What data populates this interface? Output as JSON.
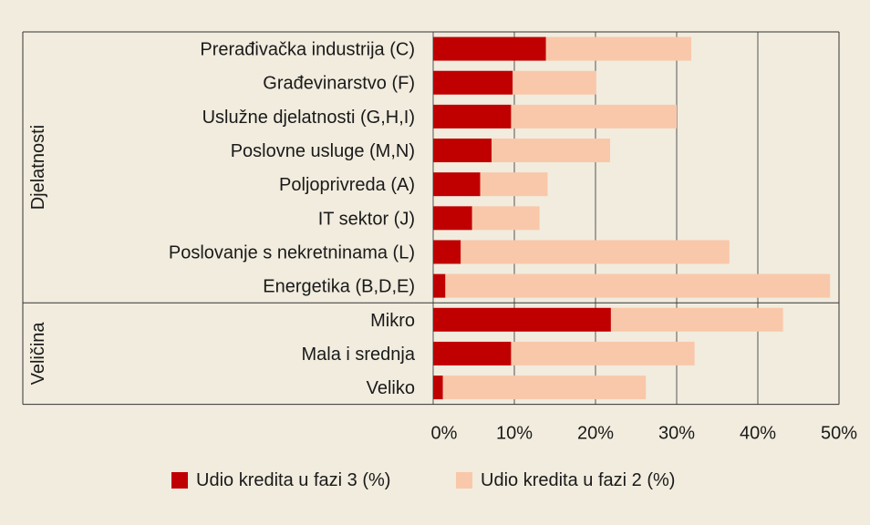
{
  "chart_data": {
    "type": "bar",
    "orientation": "horizontal",
    "stacked": true,
    "groups": [
      {
        "label": "Djelatnosti",
        "categories": [
          "Prerađivačka industrija (C)",
          "Građevinarstvo (F)",
          "Uslužne djelatnosti (G,H,I)",
          "Poslovne usluge (M,N)",
          "Poljoprivreda (A)",
          "IT sektor (J)",
          "Poslovanje s nekretninama (L)",
          "Energetika (B,D,E)"
        ]
      },
      {
        "label": "Veličina",
        "categories": [
          "Mikro",
          "Mala i srednja",
          "Veliko"
        ]
      }
    ],
    "categories": [
      "Prerađivačka industrija (C)",
      "Građevinarstvo (F)",
      "Uslužne djelatnosti (G,H,I)",
      "Poslovne usluge (M,N)",
      "Poljoprivreda (A)",
      "IT sektor (J)",
      "Poslovanje s nekretninama (L)",
      "Energetika (B,D,E)",
      "Mikro",
      "Mala i srednja",
      "Veliko"
    ],
    "series": [
      {
        "name": "Udio kredita u fazi 3 (%)",
        "color": "#c00000",
        "values": [
          13.9,
          9.8,
          9.6,
          7.2,
          5.8,
          4.8,
          3.4,
          1.5,
          21.9,
          9.6,
          1.2
        ]
      },
      {
        "name": "Udio kredita u fazi 2 (%)",
        "color": "#f9c8aa",
        "values": [
          17.9,
          10.3,
          20.4,
          14.6,
          8.3,
          8.3,
          33.1,
          47.4,
          21.2,
          22.6,
          25.0
        ]
      }
    ],
    "xlim": [
      0,
      50
    ],
    "xticks": [
      "0%",
      "10%",
      "20%",
      "30%",
      "40%",
      "50%"
    ],
    "grid": true,
    "legend_position": "bottom"
  }
}
